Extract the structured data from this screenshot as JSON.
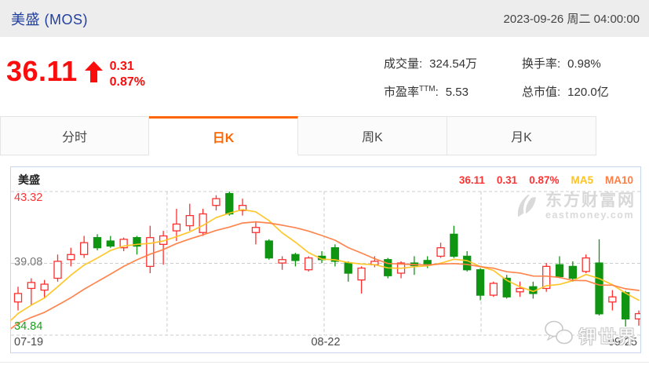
{
  "header": {
    "title": "美盛 (MOS)",
    "datetime": "2023-09-26 周二 04:00:00"
  },
  "quote": {
    "price": "36.11",
    "change": "0.31",
    "change_percent": "0.87%",
    "direction": "up"
  },
  "stats": [
    {
      "label": "成交量:",
      "value": "324.54万"
    },
    {
      "label": "换手率:",
      "value": "0.98%"
    },
    {
      "label": "市盈率",
      "label_sup": "TTM",
      "label_colon": ":",
      "value": "5.53"
    },
    {
      "label": "总市值:",
      "value": "120.0亿"
    }
  ],
  "tabs": [
    {
      "label": "分时",
      "active": false
    },
    {
      "label": "日K",
      "active": true
    },
    {
      "label": "周K",
      "active": false
    },
    {
      "label": "月K",
      "active": false
    }
  ],
  "chart_header": {
    "name": "美盛",
    "price": "36.11",
    "change": "0.31",
    "change_percent": "0.87%",
    "ma5_label": "MA5",
    "ma10_label": "MA10"
  },
  "watermarks": {
    "eastmoney_cn": "东方财富网",
    "eastmoney_en": "eastmoney.com",
    "channel": "钾世界"
  },
  "colors": {
    "title_blue": "#21409e",
    "quote_red": "#f90d0d",
    "chart_red": "#fe3333",
    "chart_green": "#0f9512",
    "ma5": "#ffc422",
    "ma10": "#ff7e45",
    "accent_orange": "#ff6600",
    "mid_tick_gray": "#777777",
    "watermark_gray": "#d9d9d9"
  },
  "chart_data": {
    "type": "candlestick",
    "title": "美盛 日K",
    "ylim": [
      34.84,
      43.32
    ],
    "up_color": "#fe3030",
    "down_color": "#0f9512",
    "y_ticks": [
      {
        "label": "43.32",
        "value": 43.32,
        "color": "#fe3333"
      },
      {
        "label": "39.08",
        "value": 39.08,
        "color": "#777777"
      },
      {
        "label": "34.84",
        "value": 34.84,
        "color": "#18a018"
      }
    ],
    "x_ticks": [
      "07-19",
      "08-22",
      "09-25"
    ],
    "grid": {
      "h_values": [
        43.32,
        39.08,
        34.84
      ],
      "v_fractions": [
        0.248,
        0.4975,
        0.7469
      ]
    },
    "candles": [
      [
        36.8,
        37.3,
        36.3,
        37.7
      ],
      [
        37.6,
        37.95,
        36.6,
        38.2
      ],
      [
        37.5,
        37.85,
        37.0,
        38.1
      ],
      [
        38.2,
        39.2,
        38.0,
        39.6
      ],
      [
        39.3,
        39.6,
        38.9,
        40.0
      ],
      [
        39.6,
        40.3,
        39.4,
        40.7
      ],
      [
        40.6,
        40.0,
        39.85,
        40.8
      ],
      [
        40.4,
        40.1,
        40.0,
        40.7
      ],
      [
        40.0,
        40.5,
        39.8,
        40.6
      ],
      [
        40.6,
        40.1,
        39.6,
        40.7
      ],
      [
        38.9,
        40.6,
        38.5,
        41.3
      ],
      [
        40.2,
        40.7,
        39.0,
        41.0
      ],
      [
        41.0,
        41.4,
        40.4,
        42.3
      ],
      [
        41.3,
        41.9,
        41.0,
        42.6
      ],
      [
        40.9,
        42.0,
        40.7,
        42.3
      ],
      [
        42.5,
        42.9,
        42.2,
        43.1
      ],
      [
        43.2,
        42.0,
        41.9,
        43.32
      ],
      [
        42.2,
        42.5,
        41.9,
        42.9
      ],
      [
        40.9,
        41.2,
        40.2,
        41.5
      ],
      [
        40.4,
        39.4,
        39.3,
        40.5
      ],
      [
        39.1,
        39.3,
        38.7,
        39.5
      ],
      [
        39.6,
        39.25,
        38.9,
        39.7
      ],
      [
        38.7,
        39.4,
        38.6,
        39.5
      ],
      [
        39.5,
        39.3,
        39.1,
        39.8
      ],
      [
        40.0,
        39.2,
        38.9,
        40.2
      ],
      [
        39.1,
        38.5,
        38.0,
        39.2
      ],
      [
        38.1,
        38.8,
        37.3,
        38.9
      ],
      [
        39.0,
        39.2,
        38.85,
        39.5
      ],
      [
        39.3,
        38.35,
        38.2,
        39.4
      ],
      [
        38.5,
        39.1,
        38.2,
        39.2
      ],
      [
        39.1,
        38.95,
        38.4,
        39.5
      ],
      [
        39.25,
        39.05,
        38.8,
        39.5
      ],
      [
        39.5,
        40.0,
        39.4,
        40.3
      ],
      [
        40.8,
        39.5,
        39.4,
        41.3
      ],
      [
        39.5,
        38.7,
        38.6,
        39.8
      ],
      [
        38.7,
        37.2,
        36.9,
        38.8
      ],
      [
        37.2,
        37.9,
        37.1,
        38.0
      ],
      [
        38.2,
        37.1,
        37.0,
        38.4
      ],
      [
        37.4,
        37.6,
        37.1,
        38.0
      ],
      [
        37.7,
        37.3,
        37.0,
        38.0
      ],
      [
        37.6,
        38.9,
        37.4,
        39.1
      ],
      [
        39.0,
        38.3,
        38.2,
        39.5
      ],
      [
        38.9,
        38.2,
        38.0,
        39.2
      ],
      [
        38.6,
        39.4,
        38.5,
        39.6
      ],
      [
        39.1,
        36.1,
        36.0,
        40.5
      ],
      [
        36.8,
        37.1,
        36.3,
        37.5
      ],
      [
        37.35,
        35.8,
        35.35,
        37.45
      ],
      [
        35.8,
        36.11,
        35.4,
        36.3
      ]
    ],
    "ma_seed_closes": [
      34.2,
      34.5,
      34.8,
      35.0,
      35.2,
      35.3,
      35.5,
      35.7,
      35.9,
      36.2
    ],
    "series": [
      {
        "name": "MA5",
        "period": 5,
        "color": "#ffc422"
      },
      {
        "name": "MA10",
        "period": 10,
        "color": "#ff7e45"
      }
    ],
    "legend_position": "top-right",
    "grid_on": true
  }
}
